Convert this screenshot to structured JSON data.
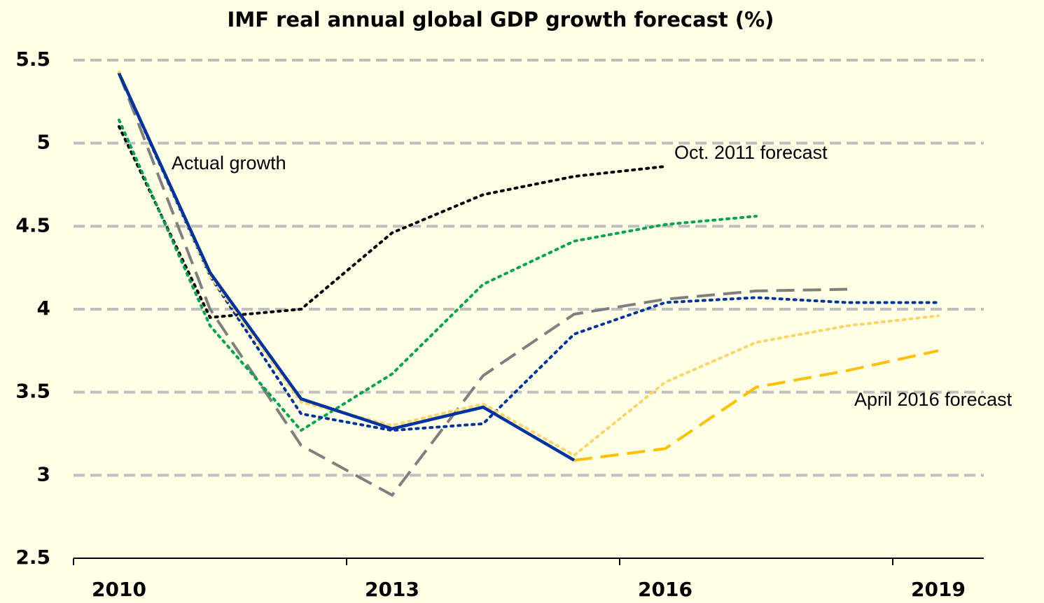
{
  "chart_data": {
    "type": "line",
    "title": "IMF real annual global GDP growth forecast (%)",
    "categories": [
      "2010",
      null,
      null,
      "2013",
      null,
      null,
      "2016",
      null,
      null,
      "2019"
    ],
    "ylim": [
      2.5,
      5.5
    ],
    "yticks": [
      2.5,
      3,
      3.5,
      4,
      4.5,
      5,
      5.5
    ],
    "grid": true,
    "series": [
      {
        "color": "#7f7f7f",
        "dash": "dashed",
        "values": [
          5.42,
          4.0,
          3.18,
          2.88,
          3.6,
          3.97,
          4.06,
          4.11,
          4.12,
          null
        ]
      },
      {
        "name": "Oct. 2011 forecast",
        "color": "#000000",
        "dash": "dotted",
        "values": [
          5.1,
          3.95,
          4.0,
          4.46,
          4.69,
          4.8,
          4.86,
          null,
          null,
          null
        ]
      },
      {
        "color": "#00a550",
        "dash": "dotted",
        "values": [
          5.14,
          3.9,
          3.27,
          3.61,
          4.15,
          4.41,
          4.51,
          4.56,
          null,
          null
        ]
      },
      {
        "color": "#0033a0",
        "dash": "dotted",
        "values": [
          5.42,
          4.2,
          3.37,
          3.27,
          3.31,
          3.85,
          4.04,
          4.07,
          4.04,
          4.04
        ]
      },
      {
        "color": "#ffd466",
        "dash": "dotted",
        "values": [
          5.43,
          4.2,
          3.44,
          3.3,
          3.43,
          3.12,
          3.56,
          3.8,
          3.9,
          3.96
        ]
      },
      {
        "name": "April 2016 forecast",
        "color": "#ffc000",
        "dash": "dashed",
        "values": [
          null,
          null,
          null,
          null,
          null,
          3.09,
          3.16,
          3.53,
          3.63,
          3.75
        ]
      },
      {
        "name": "Actual growth",
        "color": "#0033a0",
        "dash": "solid",
        "values": [
          5.42,
          4.22,
          3.46,
          3.28,
          3.41,
          3.09,
          null,
          null,
          null,
          null
        ]
      }
    ]
  }
}
